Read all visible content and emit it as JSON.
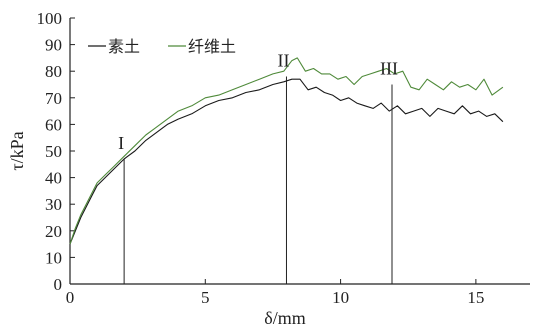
{
  "chart_data": {
    "type": "line",
    "title": "",
    "xlabel": "δ/mm",
    "ylabel": "τ/kPa",
    "xlim": [
      0,
      17
    ],
    "ylim": [
      0,
      100
    ],
    "x_ticks": [
      "0",
      "5",
      "10",
      "15"
    ],
    "y_ticks": [
      "0",
      "10",
      "20",
      "30",
      "40",
      "50",
      "60",
      "70",
      "80",
      "90",
      "100"
    ],
    "x_tick_values": [
      0,
      5,
      10,
      15
    ],
    "y_tick_values": [
      0,
      10,
      20,
      30,
      40,
      50,
      60,
      70,
      80,
      90,
      100
    ],
    "legend_position": "top-left",
    "series": [
      {
        "name": "素土",
        "color": "#1a1a1a",
        "x": [
          0,
          0.2,
          0.4,
          0.6,
          0.8,
          1.0,
          1.3,
          1.6,
          2.0,
          2.4,
          2.8,
          3.2,
          3.6,
          4.0,
          4.5,
          5.0,
          5.5,
          6.0,
          6.5,
          7.0,
          7.5,
          7.9,
          8.2,
          8.5,
          8.8,
          9.1,
          9.4,
          9.7,
          10.0,
          10.3,
          10.6,
          10.9,
          11.2,
          11.5,
          11.8,
          12.1,
          12.4,
          12.7,
          13.0,
          13.3,
          13.6,
          13.9,
          14.2,
          14.5,
          14.8,
          15.1,
          15.4,
          15.7,
          16.0
        ],
        "y": [
          15,
          20,
          25,
          29,
          33,
          37,
          40,
          43,
          47,
          50,
          54,
          57,
          60,
          62,
          64,
          67,
          69,
          70,
          72,
          73,
          75,
          76,
          77,
          77,
          73,
          74,
          72,
          71,
          69,
          70,
          68,
          67,
          66,
          68,
          65,
          67,
          64,
          65,
          66,
          63,
          66,
          65,
          64,
          67,
          64,
          65,
          63,
          64,
          61
        ]
      },
      {
        "name": "纤维土",
        "color": "#4f8a3a",
        "x": [
          0,
          0.2,
          0.4,
          0.6,
          0.8,
          1.0,
          1.3,
          1.6,
          2.0,
          2.4,
          2.8,
          3.2,
          3.6,
          4.0,
          4.5,
          5.0,
          5.5,
          6.0,
          6.5,
          7.0,
          7.5,
          7.9,
          8.2,
          8.4,
          8.7,
          9.0,
          9.3,
          9.6,
          9.9,
          10.2,
          10.5,
          10.8,
          11.1,
          11.4,
          11.7,
          12.0,
          12.3,
          12.6,
          12.9,
          13.2,
          13.5,
          13.8,
          14.1,
          14.4,
          14.7,
          15.0,
          15.3,
          15.6,
          16.0
        ],
        "y": [
          15,
          21,
          26,
          30,
          34,
          38,
          41,
          44,
          48,
          52,
          56,
          59,
          62,
          65,
          67,
          70,
          71,
          73,
          75,
          77,
          79,
          80,
          84,
          85,
          80,
          81,
          79,
          79,
          77,
          78,
          75,
          78,
          79,
          80,
          81,
          79,
          80,
          74,
          73,
          77,
          75,
          73,
          76,
          74,
          75,
          73,
          77,
          71,
          74
        ]
      }
    ],
    "annotations": [
      {
        "label": "I",
        "x": 2.0,
        "y_top": 47
      },
      {
        "label": "II",
        "x": 8.0,
        "y_top": 78
      },
      {
        "label": "III",
        "x": 11.9,
        "y_top": 75
      }
    ]
  }
}
